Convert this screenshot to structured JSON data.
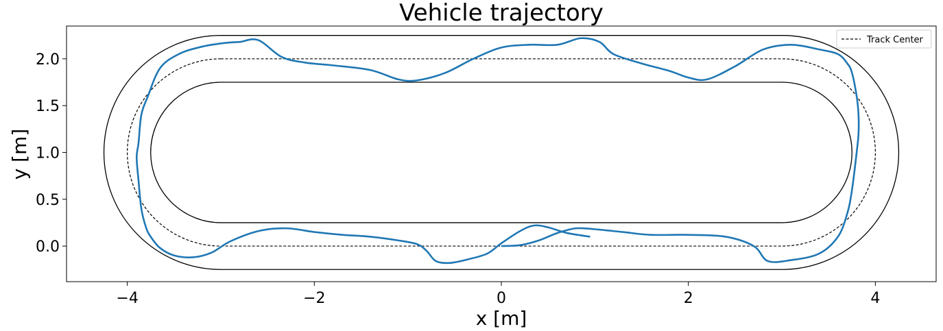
{
  "chart_data": {
    "type": "line",
    "title": "Vehicle trajectory",
    "xlabel": "x [m]",
    "ylabel": "y [m]",
    "xlim": [
      -4.65,
      4.65
    ],
    "ylim": [
      -0.38,
      2.35
    ],
    "xticks": [
      -4,
      -2,
      0,
      2,
      4
    ],
    "xtick_labels": [
      "−4",
      "−2",
      "0",
      "2",
      "4"
    ],
    "yticks": [
      0.0,
      0.5,
      1.0,
      1.5,
      2.0
    ],
    "ytick_labels": [
      "0.0",
      "0.5",
      "1.0",
      "1.5",
      "2.0"
    ],
    "grid": false,
    "legend": {
      "location": "top-right",
      "entries": [
        "Track Center"
      ]
    },
    "track": {
      "straight_x": [
        -3,
        3
      ],
      "center_y": 1.0,
      "center_radius": 1.0,
      "outer_radius": 1.25,
      "inner_radius": 0.75
    },
    "series": [
      {
        "name": "Track Center",
        "style": "dashed",
        "color": "#000000",
        "shape": "stadium",
        "radius": 1.0
      },
      {
        "name": "",
        "style": "solid",
        "color": "#1f77b4",
        "x": [
          0.0,
          0.2,
          0.4,
          0.6,
          0.8,
          1.0,
          1.3,
          1.6,
          2.0,
          2.4,
          2.7,
          2.85,
          3.1,
          3.4,
          3.6,
          3.7,
          3.75,
          3.8,
          3.82,
          3.82,
          3.8,
          3.75,
          3.7,
          3.6,
          3.4,
          3.1,
          2.8,
          2.5,
          2.2,
          2.0,
          1.8,
          1.5,
          1.2,
          1.05,
          0.85,
          0.6,
          0.3,
          0.0,
          -0.3,
          -0.6,
          -0.9,
          -1.1,
          -1.4,
          -1.8,
          -2.1,
          -2.35,
          -2.6,
          -2.8,
          -2.95,
          -3.2,
          -3.45,
          -3.65,
          -3.78,
          -3.85,
          -3.88,
          -3.9,
          -3.88,
          -3.85,
          -3.8,
          -3.75,
          -3.65,
          -3.5,
          -3.3,
          -3.1,
          -2.9,
          -2.6,
          -2.3,
          -2.0,
          -1.7,
          -1.4,
          -1.1,
          -0.9,
          -0.8,
          -0.7,
          -0.55,
          -0.35,
          -0.15,
          0.0,
          0.2,
          0.35,
          0.5,
          0.7,
          0.95
        ],
        "y": [
          0.0,
          0.01,
          0.06,
          0.14,
          0.19,
          0.18,
          0.15,
          0.12,
          0.12,
          0.1,
          0.0,
          -0.16,
          -0.15,
          -0.08,
          0.1,
          0.35,
          0.6,
          1.0,
          1.2,
          1.4,
          1.6,
          1.85,
          1.95,
          2.05,
          2.1,
          2.15,
          2.1,
          1.92,
          1.78,
          1.8,
          1.87,
          1.95,
          2.05,
          2.18,
          2.22,
          2.15,
          2.15,
          2.12,
          2.0,
          1.85,
          1.77,
          1.78,
          1.88,
          1.93,
          1.96,
          2.02,
          2.2,
          2.18,
          2.17,
          2.13,
          2.05,
          1.9,
          1.6,
          1.4,
          1.1,
          0.95,
          0.7,
          0.4,
          0.2,
          0.1,
          -0.02,
          -0.1,
          -0.12,
          -0.07,
          0.05,
          0.16,
          0.19,
          0.15,
          0.12,
          0.1,
          0.06,
          0.02,
          -0.05,
          -0.16,
          -0.18,
          -0.14,
          -0.08,
          0.03,
          0.16,
          0.22,
          0.2,
          0.14,
          0.1
        ]
      }
    ]
  }
}
